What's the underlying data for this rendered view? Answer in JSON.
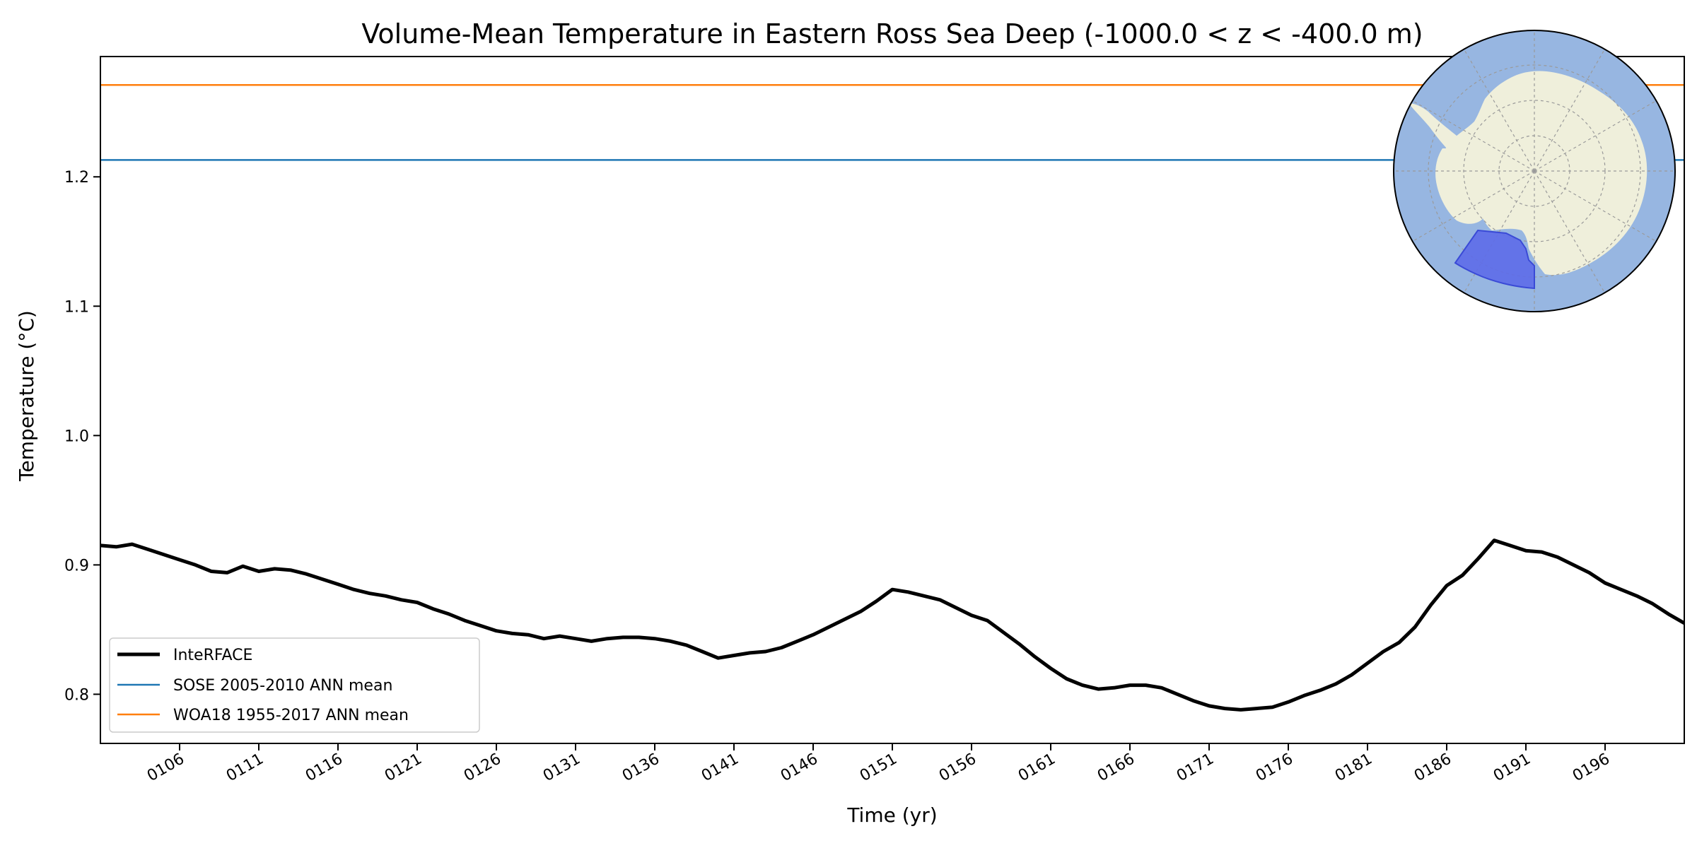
{
  "chart_data": {
    "type": "line",
    "title": "Volume-Mean Temperature in Eastern Ross Sea Deep (-1000.0 < z < -400.0 m)",
    "xlabel": "Time (yr)",
    "ylabel": "Temperature (°C)",
    "xlim": [
      101,
      201
    ],
    "ylim": [
      0.762,
      1.293
    ],
    "x_ticks": [
      106,
      111,
      116,
      121,
      126,
      131,
      136,
      141,
      146,
      151,
      156,
      161,
      166,
      171,
      176,
      181,
      186,
      191,
      196
    ],
    "x_tick_labels": [
      "0106",
      "0111",
      "0116",
      "0121",
      "0126",
      "0131",
      "0136",
      "0141",
      "0146",
      "0151",
      "0156",
      "0161",
      "0166",
      "0171",
      "0176",
      "0181",
      "0186",
      "0191",
      "0196"
    ],
    "y_ticks": [
      0.8,
      0.9,
      1.0,
      1.1,
      1.2
    ],
    "y_tick_labels": [
      "0.8",
      "0.9",
      "1.0",
      "1.1",
      "1.2"
    ],
    "grid": false,
    "legend_position": "lower-left",
    "series": [
      {
        "name": "InteRFACE",
        "color": "#000000",
        "style": "thick-line",
        "x": [
          101.0,
          102.0,
          103.0,
          104.0,
          105.0,
          106.0,
          107.0,
          108.0,
          109.0,
          110.0,
          111.0,
          112.0,
          113.0,
          114.0,
          115.0,
          116.0,
          117.0,
          118.0,
          119.0,
          120.0,
          121.0,
          122.0,
          123.0,
          124.0,
          125.0,
          126.0,
          127.0,
          128.0,
          129.0,
          130.0,
          131.0,
          132.0,
          133.0,
          134.0,
          135.0,
          136.0,
          137.0,
          138.0,
          139.0,
          140.0,
          141.0,
          142.0,
          143.0,
          144.0,
          145.0,
          146.0,
          147.0,
          148.0,
          149.0,
          150.0,
          151.0,
          152.0,
          153.0,
          154.0,
          155.0,
          156.0,
          157.0,
          158.0,
          159.0,
          160.0,
          161.0,
          162.0,
          163.0,
          164.0,
          165.0,
          166.0,
          167.0,
          168.0,
          169.0,
          170.0,
          171.0,
          172.0,
          173.0,
          174.0,
          175.0,
          176.0,
          177.0,
          178.0,
          179.0,
          180.0,
          181.0,
          182.0,
          183.0,
          184.0,
          185.0,
          186.0,
          187.0,
          188.0,
          189.0,
          190.0,
          191.0,
          192.0,
          193.0,
          194.0,
          195.0,
          196.0,
          197.0,
          198.0,
          199.0,
          200.0,
          201.0
        ],
        "y": [
          0.915,
          0.914,
          0.916,
          0.912,
          0.908,
          0.904,
          0.9,
          0.895,
          0.894,
          0.899,
          0.895,
          0.897,
          0.896,
          0.893,
          0.889,
          0.885,
          0.881,
          0.878,
          0.876,
          0.873,
          0.871,
          0.866,
          0.862,
          0.857,
          0.853,
          0.849,
          0.847,
          0.846,
          0.843,
          0.845,
          0.843,
          0.841,
          0.843,
          0.844,
          0.844,
          0.843,
          0.841,
          0.838,
          0.833,
          0.828,
          0.83,
          0.832,
          0.833,
          0.836,
          0.841,
          0.846,
          0.852,
          0.858,
          0.864,
          0.872,
          0.881,
          0.879,
          0.876,
          0.873,
          0.867,
          0.861,
          0.857,
          0.848,
          0.839,
          0.829,
          0.82,
          0.812,
          0.807,
          0.804,
          0.805,
          0.807,
          0.807,
          0.805,
          0.8,
          0.795,
          0.791,
          0.789,
          0.788,
          0.789,
          0.79,
          0.794,
          0.799,
          0.803,
          0.808,
          0.815,
          0.824,
          0.833,
          0.84,
          0.852,
          0.869,
          0.884,
          0.892,
          0.905,
          0.919,
          0.915,
          0.911,
          0.91,
          0.906,
          0.9,
          0.894,
          0.886,
          0.881,
          0.876,
          0.87,
          0.862,
          0.855
        ]
      },
      {
        "name": "SOSE 2005-2010 ANN mean",
        "color": "#1f77b4",
        "style": "thin-line",
        "x": [
          101,
          201
        ],
        "y": [
          1.213,
          1.213
        ]
      },
      {
        "name": "WOA18 1955-2017 ANN mean",
        "color": "#ff7f0e",
        "style": "thin-line",
        "x": [
          101,
          201
        ],
        "y": [
          1.271,
          1.271
        ]
      }
    ]
  },
  "inset_map": {
    "ocean_color": "#97b6e1",
    "land_color": "#efefdb",
    "region_color": "#5d6ce9",
    "graticule_color": "#9a9a9a"
  }
}
